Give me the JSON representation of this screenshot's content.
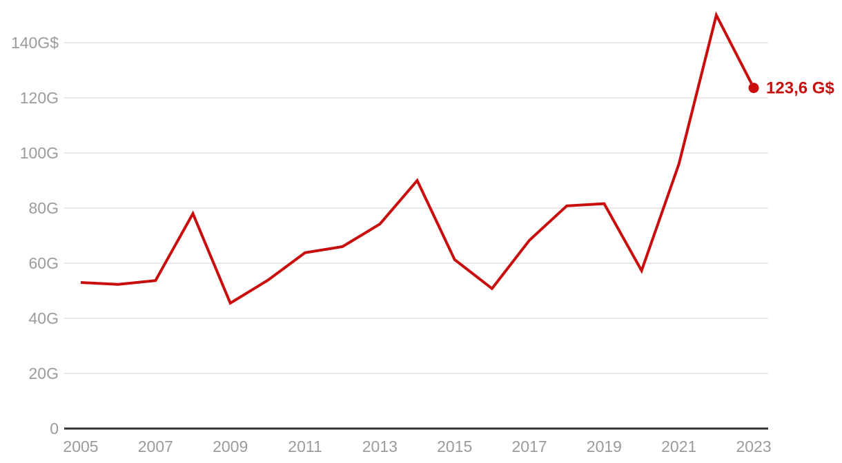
{
  "chart": {
    "background": "#ffffff",
    "colors": {
      "line": "#c90d0d",
      "grid": "#e2e2e2",
      "axis": "#333333",
      "tick_label": "#9b9b9b"
    },
    "end_label": "123,6 G$"
  },
  "chart_data": {
    "type": "line",
    "unit": "G$",
    "x": [
      2005,
      2006,
      2007,
      2008,
      2009,
      2010,
      2011,
      2012,
      2013,
      2014,
      2015,
      2016,
      2017,
      2018,
      2019,
      2020,
      2021,
      2022,
      2023
    ],
    "values": [
      53,
      52.3,
      53.7,
      78,
      45.5,
      53.8,
      63.8,
      66,
      74.2,
      90,
      61.3,
      50.8,
      68.3,
      80.8,
      81.6,
      57.3,
      96,
      150,
      123.6
    ],
    "series_color": "#c90d0d",
    "last_point": {
      "x": 2023,
      "value": 123.6,
      "label": "123,6 G$"
    },
    "y_ticks": [
      {
        "value": 0,
        "label": "0"
      },
      {
        "value": 20,
        "label": "20G"
      },
      {
        "value": 40,
        "label": "40G"
      },
      {
        "value": 60,
        "label": "60G"
      },
      {
        "value": 80,
        "label": "80G"
      },
      {
        "value": 100,
        "label": "100G"
      },
      {
        "value": 120,
        "label": "120G"
      },
      {
        "value": 140,
        "label": "140G$"
      }
    ],
    "x_ticks": [
      {
        "year": 2005,
        "label": "2005"
      },
      {
        "year": 2007,
        "label": "2007"
      },
      {
        "year": 2009,
        "label": "2009"
      },
      {
        "year": 2011,
        "label": "2011"
      },
      {
        "year": 2013,
        "label": "2013"
      },
      {
        "year": 2015,
        "label": "2015"
      },
      {
        "year": 2017,
        "label": "2017"
      },
      {
        "year": 2019,
        "label": "2019"
      },
      {
        "year": 2021,
        "label": "2021"
      },
      {
        "year": 2023,
        "label": "2023"
      }
    ],
    "ylim": [
      0,
      155
    ],
    "grid": "horizontal",
    "legend": "none",
    "title": ""
  }
}
